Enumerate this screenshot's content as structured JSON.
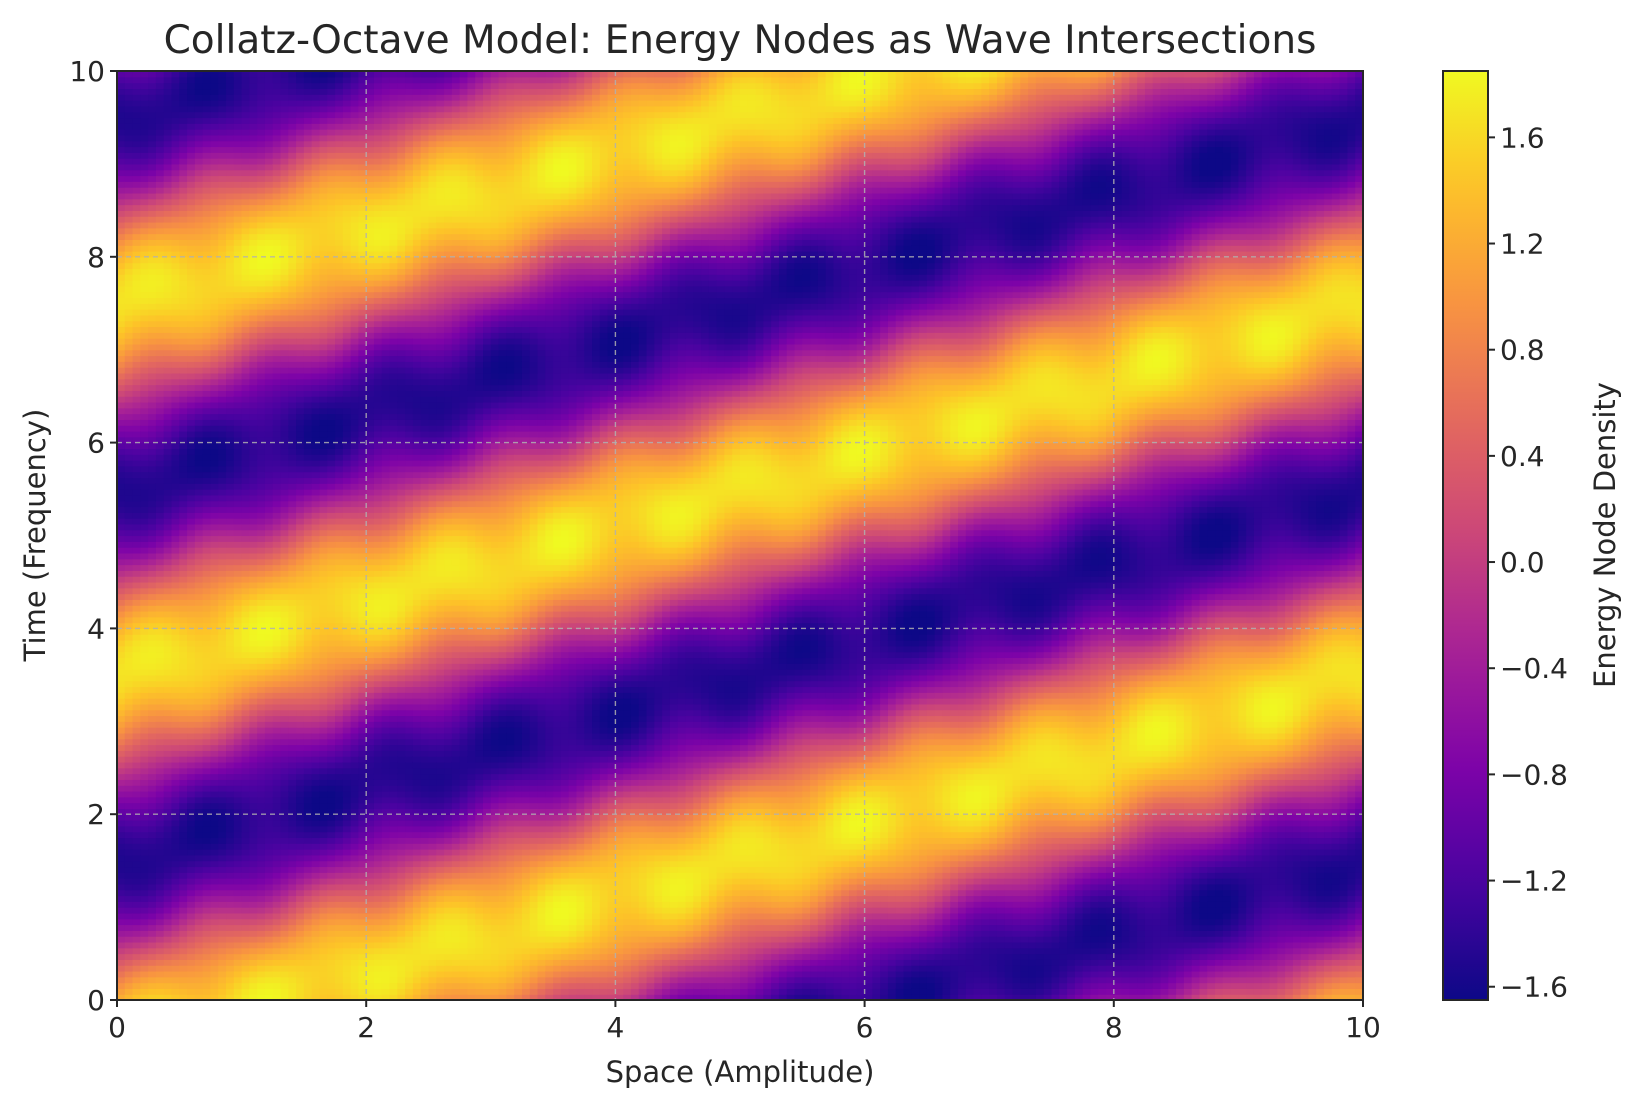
{
  "chart_data": {
    "type": "heatmap",
    "title": "Collatz-Octave Model: Energy Nodes as Wave Intersections",
    "xlabel": "Space (Amplitude)",
    "ylabel": "Time (Frequency)",
    "xlim": [
      0,
      10
    ],
    "ylim": [
      0,
      10
    ],
    "x_ticks": [
      0,
      2,
      4,
      6,
      8,
      10
    ],
    "y_ticks": [
      0,
      2,
      4,
      6,
      8,
      10
    ],
    "x_tick_labels": [
      "0",
      "2",
      "4",
      "6",
      "8",
      "10"
    ],
    "y_tick_labels": [
      "0",
      "2",
      "4",
      "6",
      "8",
      "10"
    ],
    "grid": true,
    "colormap": "plasma",
    "colorbar": {
      "label": "Energy Node Density",
      "range": [
        -1.65,
        1.85
      ],
      "ticks": [
        -1.6,
        -1.2,
        -0.8,
        -0.4,
        0.0,
        0.4,
        0.8,
        1.2,
        1.6
      ],
      "tick_labels": [
        "−1.6",
        "−1.2",
        "−0.8",
        "−0.4",
        "0.0",
        "0.4",
        "0.8",
        "1.2",
        "1.6"
      ]
    },
    "surface": {
      "description_formula": "sin(pi*(y - 0.4*x)/2) + 0.4*sin(1.9*pi*x)*cos(pi*y)*0.25",
      "wave_period_y": 4,
      "band_slope": 0.4
    }
  }
}
